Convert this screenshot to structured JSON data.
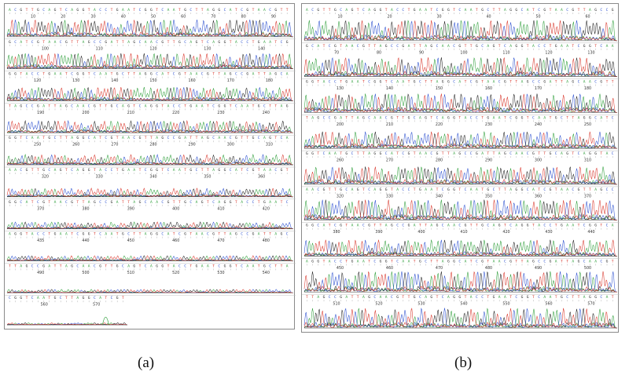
{
  "panels": [
    {
      "id": "a",
      "caption": "(a)",
      "rows": [
        {
          "position_labels": [
            "10",
            "20",
            "30",
            "40",
            "50",
            "60",
            "70",
            "80",
            "90"
          ]
        },
        {
          "position_labels": [
            "100",
            "110",
            "120",
            "130",
            "140"
          ]
        },
        {
          "position_labels": [
            "120",
            "130",
            "140",
            "150",
            "160",
            "170",
            "180"
          ]
        },
        {
          "position_labels": [
            "190",
            "200",
            "210",
            "220",
            "230",
            "240"
          ]
        },
        {
          "position_labels": [
            "250",
            "260",
            "270",
            "280",
            "290",
            "300",
            "310"
          ]
        },
        {
          "position_labels": [
            "320",
            "330",
            "340",
            "350",
            "360"
          ]
        },
        {
          "position_labels": [
            "370",
            "380",
            "390",
            "400",
            "410",
            "420"
          ]
        },
        {
          "position_labels": [
            "435",
            "440",
            "450",
            "460",
            "470",
            "480"
          ]
        },
        {
          "position_labels": [
            "490",
            "500",
            "510",
            "520",
            "530",
            "540"
          ]
        },
        {
          "position_labels": [
            "560",
            "570"
          ]
        }
      ],
      "signal_decay": "strong",
      "short_last_row": true
    },
    {
      "id": "b",
      "caption": "(b)",
      "rows": [
        {
          "position_labels": [
            "10",
            "20",
            "30",
            "40",
            "50",
            "60"
          ]
        },
        {
          "position_labels": [
            "70",
            "80",
            "90",
            "100",
            "110",
            "120",
            "130"
          ]
        },
        {
          "position_labels": [
            "130",
            "140",
            "150",
            "160",
            "170",
            "180"
          ]
        },
        {
          "position_labels": [
            "200",
            "210",
            "220",
            "230",
            "240",
            "250"
          ]
        },
        {
          "position_labels": [
            "260",
            "270",
            "280",
            "290",
            "300",
            "310"
          ]
        },
        {
          "position_labels": [
            "320",
            "330",
            "340",
            "350",
            "360",
            "370"
          ]
        },
        {
          "position_labels": [
            "380",
            "390",
            "400",
            "410",
            "420",
            "430",
            "440"
          ]
        },
        {
          "position_labels": [
            "450",
            "460",
            "470",
            "480",
            "490",
            "500"
          ]
        },
        {
          "position_labels": [
            "510",
            "520",
            "530",
            "540",
            "550",
            "560",
            "570"
          ]
        }
      ],
      "signal_decay": "weak",
      "short_last_row": false
    }
  ],
  "trace_colors": {
    "A": "#2e9e3a",
    "C": "#2b4fcf",
    "G": "#222222",
    "T": "#d8362b"
  },
  "bases": "ACGTTGCAGTCAGGTACCTGAATCGGTCAATGCTTAGGCATCGTAACGTTAGCCGATTAGCA"
}
